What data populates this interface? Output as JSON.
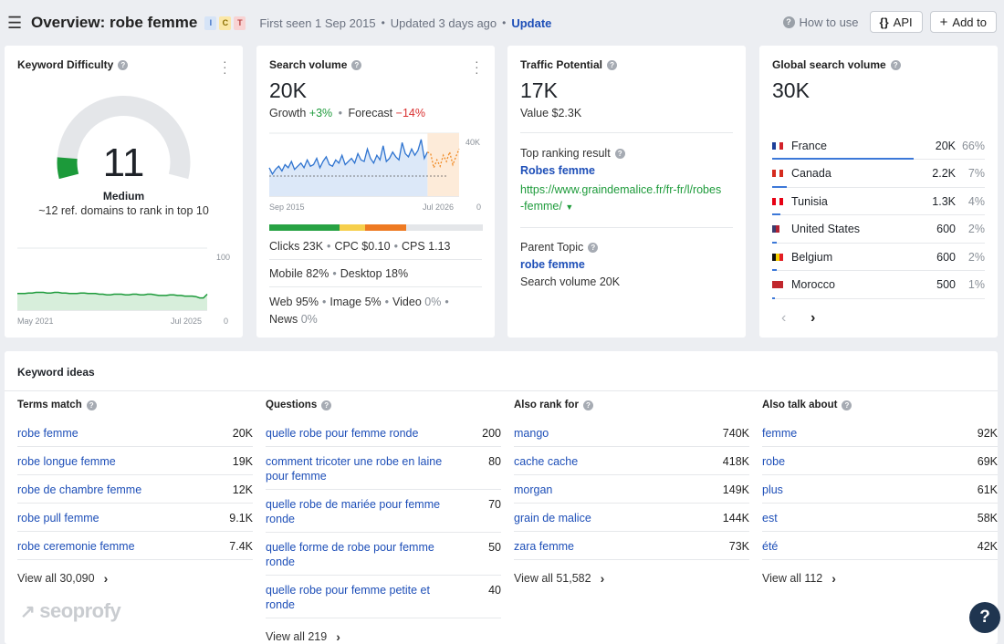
{
  "header": {
    "title": "Overview: robe femme",
    "intents": [
      {
        "letter": "I",
        "bg": "#d6e4f7",
        "fg": "#3c6fc4"
      },
      {
        "letter": "C",
        "bg": "#fbe7a6",
        "fg": "#8a6d00"
      },
      {
        "letter": "T",
        "bg": "#f8d3d3",
        "fg": "#b94141"
      }
    ],
    "first_seen": "First seen 1 Sep 2015",
    "updated": "Updated 3 days ago",
    "update_link": "Update",
    "how_to_use": "How to use",
    "api_label": "API",
    "add_to_label": "Add to"
  },
  "kd": {
    "title": "Keyword Difficulty",
    "value": "11",
    "level": "Medium",
    "desc": "~12 ref. domains to rank in top 10",
    "chart": {
      "max_label": "100",
      "min_label": "0",
      "start_label": "May 2021",
      "end_label": "Jul 2025",
      "series": [
        12,
        12,
        12,
        13,
        13,
        14,
        14,
        14,
        13,
        13,
        14,
        14,
        13,
        13,
        12,
        12,
        12,
        13,
        13,
        12,
        12,
        12,
        11,
        11,
        10,
        10,
        11,
        11,
        11,
        10,
        10,
        11,
        11,
        10,
        10,
        11,
        11,
        10,
        9,
        9,
        9,
        10,
        10,
        9,
        9,
        8,
        8,
        8,
        7,
        5,
        5,
        11
      ]
    },
    "gauge_fraction": 0.11
  },
  "sv": {
    "title": "Search volume",
    "value": "20K",
    "growth_label": "Growth",
    "growth_value": "+3%",
    "forecast_label": "Forecast",
    "forecast_value": "−14%",
    "chart": {
      "max_label": "40K",
      "min_label": "0",
      "start_label": "Sep 2015",
      "end_label": "Jul 2026",
      "series": [
        18,
        14,
        17,
        19,
        16,
        20,
        18,
        22,
        17,
        19,
        21,
        18,
        23,
        19,
        20,
        24,
        18,
        22,
        25,
        20,
        19,
        23,
        21,
        26,
        20,
        22,
        24,
        21,
        27,
        23,
        22,
        30,
        24,
        21,
        26,
        23,
        32,
        22,
        24,
        28,
        25,
        23,
        34,
        27,
        25,
        30,
        26,
        29,
        36,
        24,
        28
      ],
      "forecast": [
        27,
        18,
        23,
        19,
        26,
        22,
        28,
        20,
        25,
        30
      ]
    },
    "clicks": "Clicks 23K",
    "cpc": "CPC $0.10",
    "cps": "CPS 1.13",
    "mobile": "Mobile 82%",
    "desktop": "Desktop 18%",
    "web": "Web 95%",
    "image": "Image 5%",
    "video": "Video 0%",
    "news": "News 0%"
  },
  "tp": {
    "title": "Traffic Potential",
    "value": "17K",
    "value_label": "Value $2.3K",
    "top_label": "Top ranking result",
    "top_title": "Robes femme",
    "top_url1": "https://www.graindemalice.fr/fr-fr/l/robes",
    "top_url2": "-femme/",
    "parent_label": "Parent Topic",
    "parent_link": "robe femme",
    "parent_sv": "Search volume 20K"
  },
  "gsv": {
    "title": "Global search volume",
    "value": "30K",
    "countries": [
      {
        "name": "France",
        "value": "20K",
        "pct": "66%",
        "share": 0.66,
        "flag": [
          "#1d3f99",
          "#ffffff",
          "#d2222a"
        ]
      },
      {
        "name": "Canada",
        "value": "2.2K",
        "pct": "7%",
        "share": 0.07,
        "flag": [
          "#d52b1e",
          "#ffffff",
          "#d52b1e"
        ]
      },
      {
        "name": "Tunisia",
        "value": "1.3K",
        "pct": "4%",
        "share": 0.04,
        "flag": [
          "#e70013",
          "#ffffff",
          "#e70013"
        ]
      },
      {
        "name": "United States",
        "value": "600",
        "pct": "2%",
        "share": 0.02,
        "flag": [
          "#3c3b6e",
          "#b22234",
          "#ffffff"
        ]
      },
      {
        "name": "Belgium",
        "value": "600",
        "pct": "2%",
        "share": 0.02,
        "flag": [
          "#111111",
          "#f4d100",
          "#e31e24"
        ]
      },
      {
        "name": "Morocco",
        "value": "500",
        "pct": "1%",
        "share": 0.01,
        "flag": [
          "#c1272d",
          "#c1272d",
          "#c1272d"
        ]
      }
    ]
  },
  "ideas": {
    "title": "Keyword ideas",
    "columns": [
      {
        "label": "Terms match",
        "view_all": "View all 30,090",
        "rows": [
          {
            "k": "robe femme",
            "v": "20K"
          },
          {
            "k": "robe longue femme",
            "v": "19K"
          },
          {
            "k": "robe de chambre femme",
            "v": "12K"
          },
          {
            "k": "robe pull femme",
            "v": "9.1K"
          },
          {
            "k": "robe ceremonie femme",
            "v": "7.4K"
          }
        ]
      },
      {
        "label": "Questions",
        "view_all": "View all 219",
        "rows": [
          {
            "k": "quelle robe pour femme ronde",
            "v": "200"
          },
          {
            "k": "comment tricoter une robe en laine pour femme",
            "v": "80"
          },
          {
            "k": "quelle robe de mariée pour femme ronde",
            "v": "70"
          },
          {
            "k": "quelle forme de robe pour femme ronde",
            "v": "50"
          },
          {
            "k": "quelle robe pour femme petite et ronde",
            "v": "40"
          }
        ]
      },
      {
        "label": "Also rank for",
        "view_all": "View all 51,582",
        "rows": [
          {
            "k": "mango",
            "v": "740K"
          },
          {
            "k": "cache cache",
            "v": "418K"
          },
          {
            "k": "morgan",
            "v": "149K"
          },
          {
            "k": "grain de malice",
            "v": "144K"
          },
          {
            "k": "zara femme",
            "v": "73K"
          }
        ]
      },
      {
        "label": "Also talk about",
        "view_all": "View all 112",
        "rows": [
          {
            "k": "femme",
            "v": "92K"
          },
          {
            "k": "robe",
            "v": "69K"
          },
          {
            "k": "plus",
            "v": "61K"
          },
          {
            "k": "est",
            "v": "58K"
          },
          {
            "k": "été",
            "v": "42K"
          }
        ]
      }
    ]
  },
  "watermark": "seoprofy",
  "help_label": "?"
}
